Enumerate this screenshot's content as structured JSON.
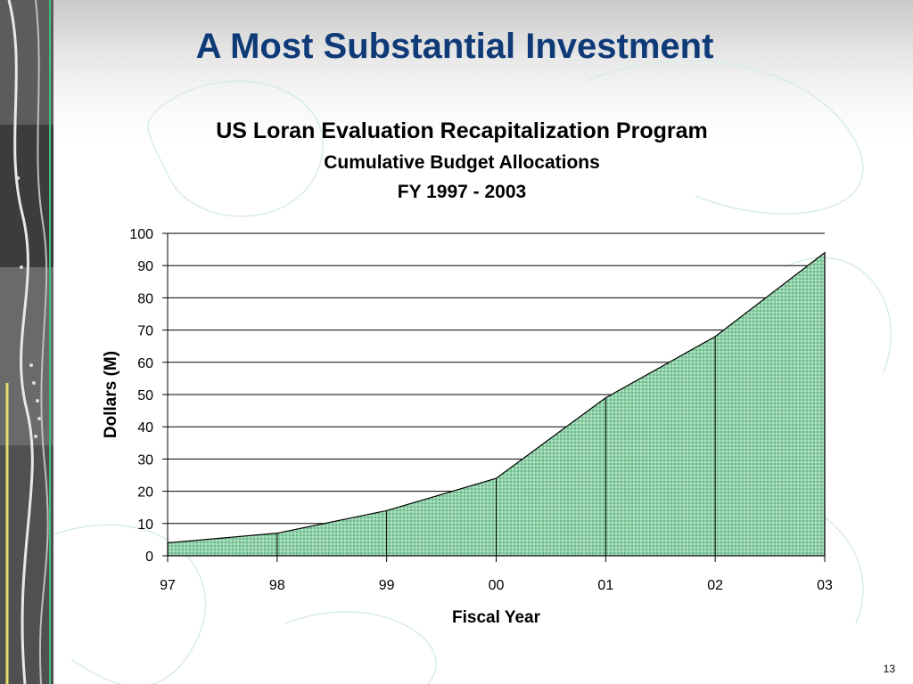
{
  "slide": {
    "title": "A Most Substantial Investment",
    "page_number": "13"
  },
  "colors": {
    "title": "#0f3a78",
    "area_fill": "#8fd0a8",
    "area_stroke": "#000000",
    "gridline": "#000000"
  },
  "chart_data": {
    "type": "area",
    "title": "US Loran Evaluation Recapitalization Program",
    "subtitle": "Cumulative Budget Allocations",
    "subtitle2": "FY 1997 - 2003",
    "xlabel": "Fiscal Year",
    "ylabel": "Dollars (M)",
    "categories": [
      "97",
      "98",
      "99",
      "00",
      "01",
      "02",
      "03"
    ],
    "values": [
      4,
      7,
      14,
      24,
      49,
      68,
      94
    ],
    "ylim": [
      0,
      100
    ],
    "yticks": [
      "0",
      "10",
      "20",
      "30",
      "40",
      "50",
      "60",
      "70",
      "80",
      "90",
      "100"
    ],
    "grid": true,
    "legend": "none"
  }
}
